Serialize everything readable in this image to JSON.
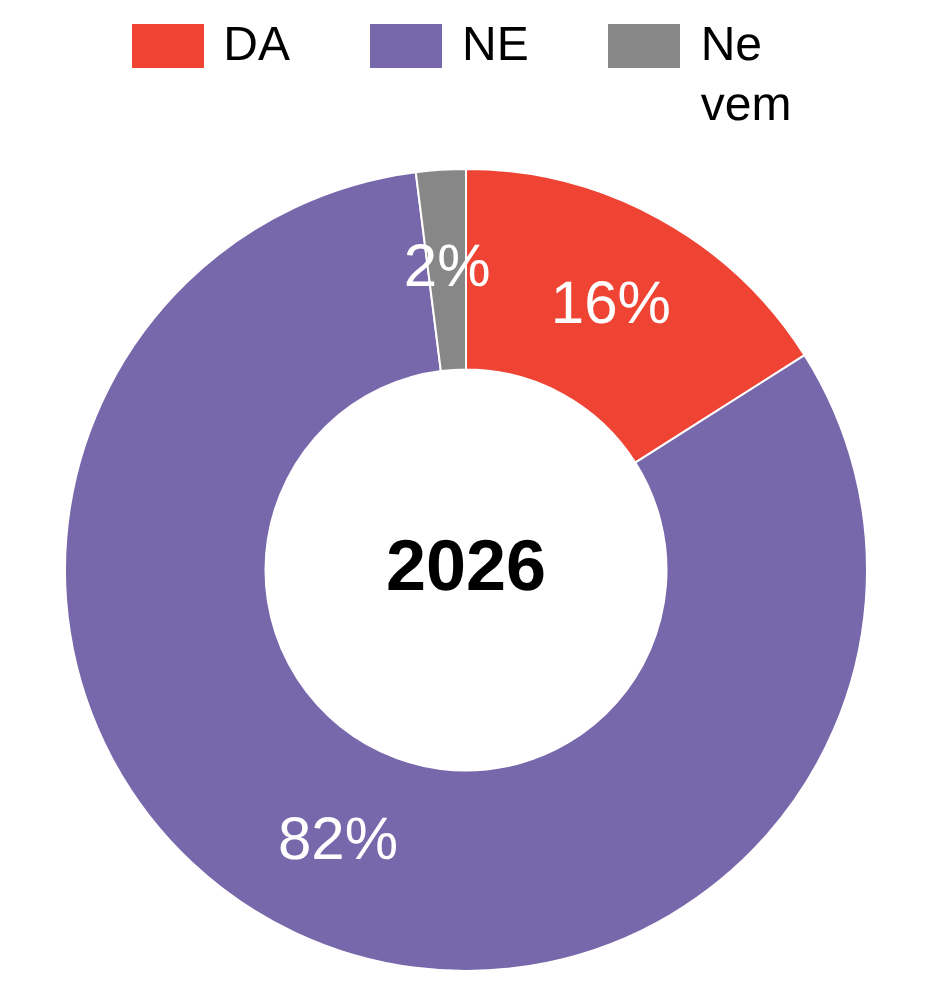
{
  "chart_data": {
    "type": "donut",
    "title": "2026",
    "categories": [
      "DA",
      "NE",
      "Ne vem"
    ],
    "values": [
      16,
      82,
      2
    ],
    "colors": [
      "#ef4433",
      "#7768ac",
      "#878787"
    ],
    "value_labels": [
      "16%",
      "82%",
      "2%"
    ],
    "legend": "top"
  }
}
